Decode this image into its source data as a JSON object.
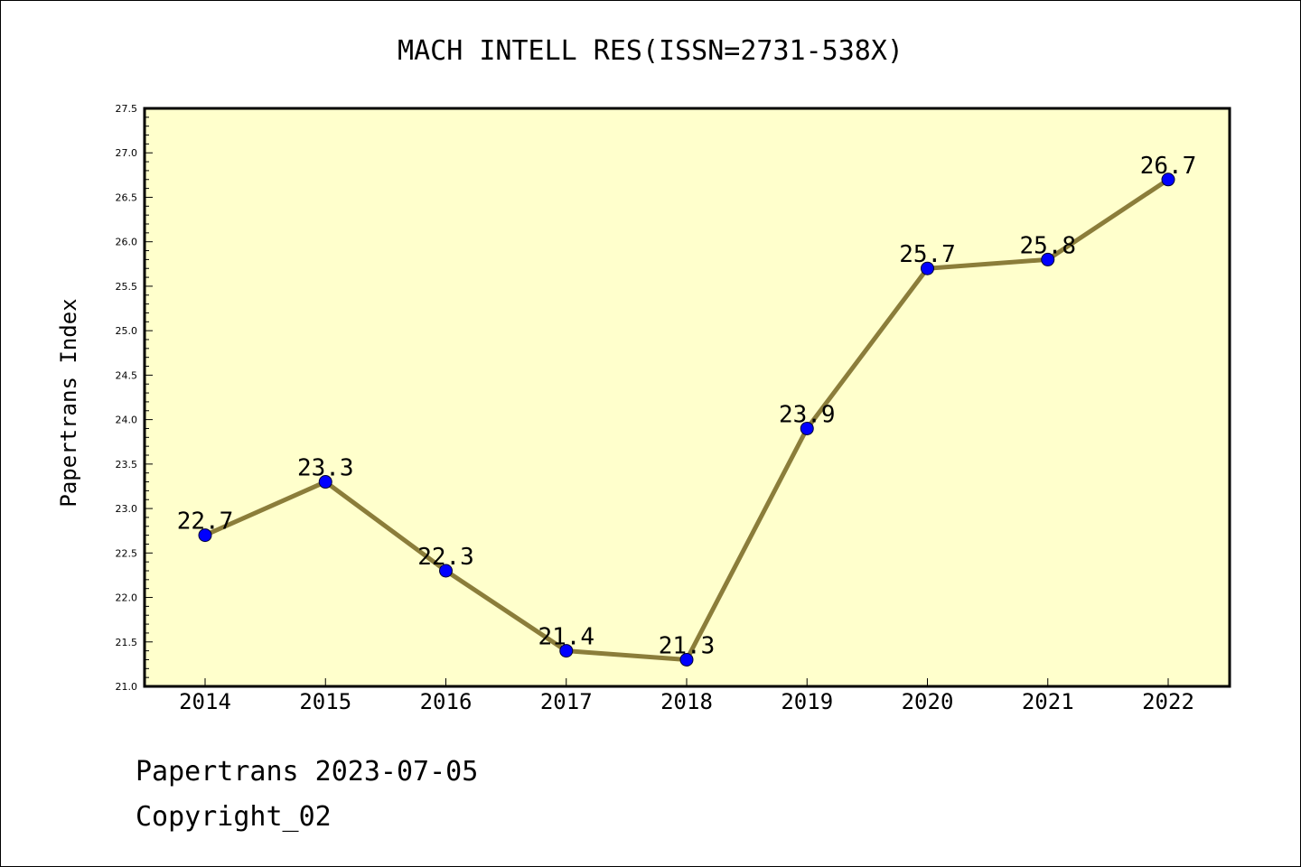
{
  "chart_data": {
    "type": "line",
    "title": "MACH INTELL RES(ISSN=2731-538X)",
    "xlabel": "",
    "ylabel": "Papertrans Index",
    "categories": [
      "2014",
      "2015",
      "2016",
      "2017",
      "2018",
      "2019",
      "2020",
      "2021",
      "2022"
    ],
    "series": [
      {
        "values": [
          22.7,
          23.3,
          22.3,
          21.4,
          21.3,
          23.9,
          25.7,
          25.8,
          26.7
        ],
        "data_labels": [
          "22.7",
          "23.3",
          "22.3",
          "21.4",
          "21.3",
          "23.9",
          "25.7",
          "25.8",
          "26.7"
        ]
      }
    ],
    "ylim": [
      21.0,
      27.5
    ],
    "y_ticks": [
      "21.0",
      "21.5",
      "22.0",
      "22.5",
      "23.0",
      "23.5",
      "24.0",
      "24.5",
      "25.0",
      "25.5",
      "26.0",
      "26.5",
      "27.0",
      "27.5"
    ],
    "grid": false,
    "legend": "none",
    "colors": {
      "plot_background": "#ffffcc",
      "line": "#8b7d3a",
      "marker": "#0000ff"
    }
  },
  "footer": {
    "line1": "Papertrans 2023-07-05",
    "line2": "Copyright_02"
  }
}
